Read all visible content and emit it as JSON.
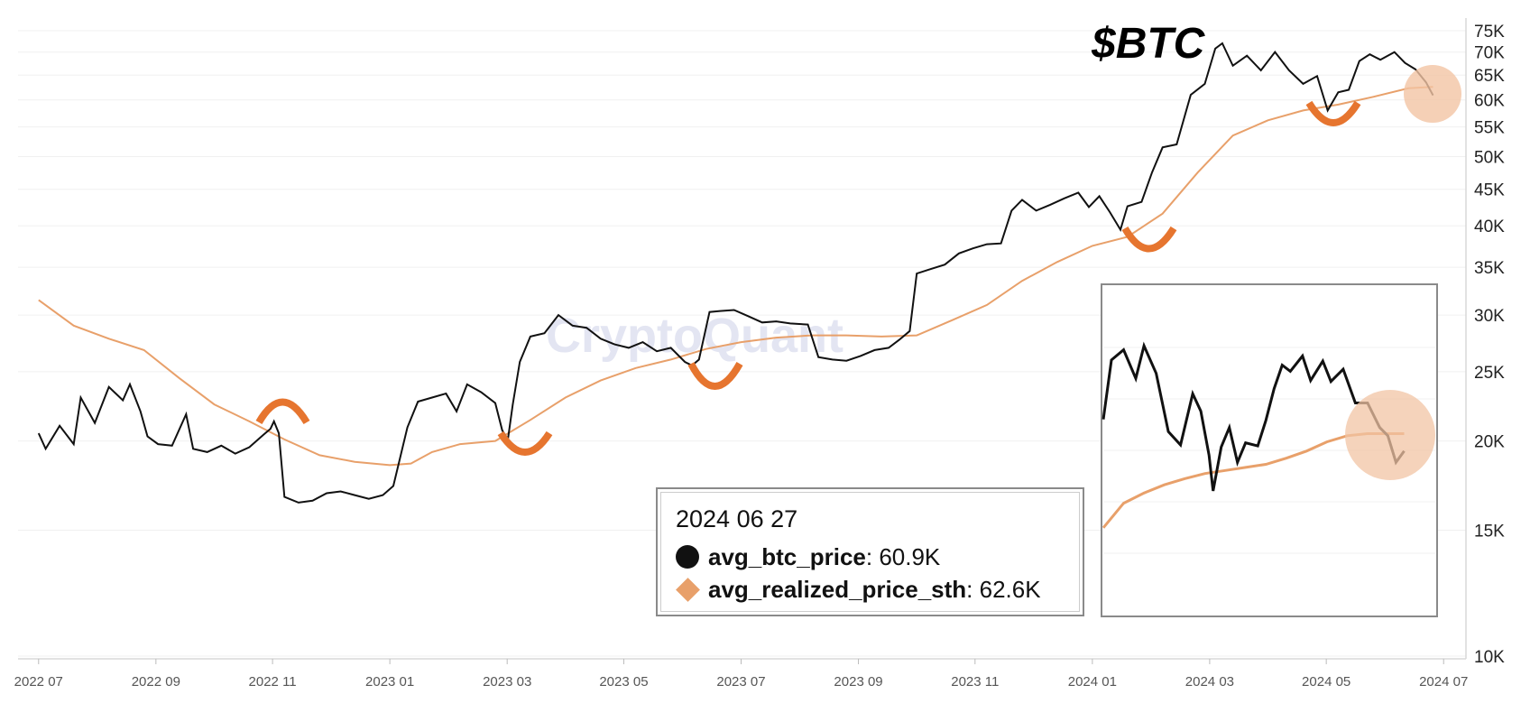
{
  "chart_data": {
    "type": "line",
    "title": "$BTC",
    "watermark": "CryptoQuant",
    "y_scale": "log",
    "ylim": [
      10000,
      75000
    ],
    "y_ticks": [
      {
        "value": 75000,
        "label": "75K"
      },
      {
        "value": 70000,
        "label": "70K"
      },
      {
        "value": 65000,
        "label": "65K"
      },
      {
        "value": 60000,
        "label": "60K"
      },
      {
        "value": 55000,
        "label": "55K"
      },
      {
        "value": 50000,
        "label": "50K"
      },
      {
        "value": 45000,
        "label": "45K"
      },
      {
        "value": 40000,
        "label": "40K"
      },
      {
        "value": 35000,
        "label": "35K"
      },
      {
        "value": 30000,
        "label": "30K"
      },
      {
        "value": 25000,
        "label": "25K"
      },
      {
        "value": 20000,
        "label": "20K"
      },
      {
        "value": 15000,
        "label": "15K"
      },
      {
        "value": 10000,
        "label": "10K"
      }
    ],
    "x_ticks": [
      {
        "value": 2022.5,
        "label": "2022 07"
      },
      {
        "value": 2022.667,
        "label": "2022 09"
      },
      {
        "value": 2022.833,
        "label": "2022 11"
      },
      {
        "value": 2023.0,
        "label": "2023 01"
      },
      {
        "value": 2023.167,
        "label": "2023 03"
      },
      {
        "value": 2023.333,
        "label": "2023 05"
      },
      {
        "value": 2023.5,
        "label": "2023 07"
      },
      {
        "value": 2023.667,
        "label": "2023 09"
      },
      {
        "value": 2023.833,
        "label": "2023 11"
      },
      {
        "value": 2024.0,
        "label": "2024 01"
      },
      {
        "value": 2024.167,
        "label": "2024 03"
      },
      {
        "value": 2024.333,
        "label": "2024 05"
      },
      {
        "value": 2024.5,
        "label": "2024 07"
      }
    ],
    "xlim": [
      2022.49,
      2024.51
    ],
    "series": [
      {
        "name": "avg_btc_price",
        "color": "#111111",
        "points": [
          [
            2022.5,
            20500
          ],
          [
            2022.51,
            19500
          ],
          [
            2022.53,
            21000
          ],
          [
            2022.55,
            19800
          ],
          [
            2022.56,
            23000
          ],
          [
            2022.58,
            21200
          ],
          [
            2022.6,
            23800
          ],
          [
            2022.62,
            22800
          ],
          [
            2022.63,
            24000
          ],
          [
            2022.645,
            22000
          ],
          [
            2022.655,
            20300
          ],
          [
            2022.67,
            19800
          ],
          [
            2022.69,
            19700
          ],
          [
            2022.71,
            21800
          ],
          [
            2022.72,
            19500
          ],
          [
            2022.74,
            19300
          ],
          [
            2022.76,
            19700
          ],
          [
            2022.78,
            19200
          ],
          [
            2022.8,
            19600
          ],
          [
            2022.82,
            20400
          ],
          [
            2022.83,
            20800
          ],
          [
            2022.835,
            21300
          ],
          [
            2022.842,
            20500
          ],
          [
            2022.85,
            16700
          ],
          [
            2022.87,
            16400
          ],
          [
            2022.89,
            16500
          ],
          [
            2022.91,
            16900
          ],
          [
            2022.93,
            17000
          ],
          [
            2022.95,
            16800
          ],
          [
            2022.97,
            16600
          ],
          [
            2022.99,
            16800
          ],
          [
            2023.005,
            17300
          ],
          [
            2023.025,
            20900
          ],
          [
            2023.04,
            22700
          ],
          [
            2023.06,
            23000
          ],
          [
            2023.08,
            23300
          ],
          [
            2023.095,
            22000
          ],
          [
            2023.11,
            24000
          ],
          [
            2023.13,
            23400
          ],
          [
            2023.15,
            22600
          ],
          [
            2023.16,
            20700
          ],
          [
            2023.168,
            20100
          ],
          [
            2023.175,
            22500
          ],
          [
            2023.185,
            25800
          ],
          [
            2023.2,
            28000
          ],
          [
            2023.22,
            28300
          ],
          [
            2023.24,
            30000
          ],
          [
            2023.26,
            29000
          ],
          [
            2023.28,
            28800
          ],
          [
            2023.3,
            27800
          ],
          [
            2023.32,
            27300
          ],
          [
            2023.34,
            27000
          ],
          [
            2023.36,
            27500
          ],
          [
            2023.38,
            26700
          ],
          [
            2023.4,
            27000
          ],
          [
            2023.42,
            25800
          ],
          [
            2023.43,
            25500
          ],
          [
            2023.44,
            26000
          ],
          [
            2023.455,
            30300
          ],
          [
            2023.47,
            30400
          ],
          [
            2023.49,
            30500
          ],
          [
            2023.51,
            29900
          ],
          [
            2023.53,
            29300
          ],
          [
            2023.55,
            29400
          ],
          [
            2023.57,
            29200
          ],
          [
            2023.595,
            29100
          ],
          [
            2023.61,
            26200
          ],
          [
            2023.63,
            26000
          ],
          [
            2023.65,
            25900
          ],
          [
            2023.67,
            26300
          ],
          [
            2023.69,
            26800
          ],
          [
            2023.71,
            27000
          ],
          [
            2023.725,
            27700
          ],
          [
            2023.74,
            28500
          ],
          [
            2023.75,
            34300
          ],
          [
            2023.77,
            34800
          ],
          [
            2023.79,
            35300
          ],
          [
            2023.81,
            36600
          ],
          [
            2023.83,
            37200
          ],
          [
            2023.85,
            37700
          ],
          [
            2023.87,
            37800
          ],
          [
            2023.885,
            42000
          ],
          [
            2023.9,
            43500
          ],
          [
            2023.92,
            42000
          ],
          [
            2023.94,
            42800
          ],
          [
            2023.96,
            43700
          ],
          [
            2023.98,
            44500
          ],
          [
            2023.995,
            42500
          ],
          [
            2024.01,
            44000
          ],
          [
            2024.025,
            41800
          ],
          [
            2024.04,
            39500
          ],
          [
            2024.05,
            42600
          ],
          [
            2024.07,
            43200
          ],
          [
            2024.085,
            47500
          ],
          [
            2024.1,
            51500
          ],
          [
            2024.12,
            52000
          ],
          [
            2024.14,
            61000
          ],
          [
            2024.16,
            63200
          ],
          [
            2024.175,
            70800
          ],
          [
            2024.185,
            72000
          ],
          [
            2024.2,
            67000
          ],
          [
            2024.22,
            69200
          ],
          [
            2024.24,
            66000
          ],
          [
            2024.26,
            70000
          ],
          [
            2024.28,
            66000
          ],
          [
            2024.3,
            63200
          ],
          [
            2024.32,
            64800
          ],
          [
            2024.335,
            58000
          ],
          [
            2024.35,
            61500
          ],
          [
            2024.365,
            62000
          ],
          [
            2024.38,
            68000
          ],
          [
            2024.395,
            69500
          ],
          [
            2024.41,
            68300
          ],
          [
            2024.43,
            70000
          ],
          [
            2024.445,
            67600
          ],
          [
            2024.46,
            66200
          ],
          [
            2024.475,
            63500
          ],
          [
            2024.485,
            60900
          ]
        ]
      },
      {
        "name": "avg_realized_price_sth",
        "color": "#e8a06a",
        "points": [
          [
            2022.5,
            31500
          ],
          [
            2022.55,
            29000
          ],
          [
            2022.6,
            27800
          ],
          [
            2022.65,
            26800
          ],
          [
            2022.7,
            24500
          ],
          [
            2022.75,
            22500
          ],
          [
            2022.8,
            21300
          ],
          [
            2022.85,
            20100
          ],
          [
            2022.9,
            19100
          ],
          [
            2022.95,
            18700
          ],
          [
            2023.0,
            18500
          ],
          [
            2023.03,
            18600
          ],
          [
            2023.06,
            19300
          ],
          [
            2023.1,
            19800
          ],
          [
            2023.15,
            20000
          ],
          [
            2023.2,
            21400
          ],
          [
            2023.25,
            23000
          ],
          [
            2023.3,
            24300
          ],
          [
            2023.35,
            25300
          ],
          [
            2023.4,
            26000
          ],
          [
            2023.45,
            26900
          ],
          [
            2023.5,
            27500
          ],
          [
            2023.55,
            27900
          ],
          [
            2023.6,
            28100
          ],
          [
            2023.65,
            28100
          ],
          [
            2023.7,
            28000
          ],
          [
            2023.75,
            28100
          ],
          [
            2023.8,
            29500
          ],
          [
            2023.85,
            31000
          ],
          [
            2023.9,
            33500
          ],
          [
            2023.95,
            35600
          ],
          [
            2024.0,
            37500
          ],
          [
            2024.05,
            38600
          ],
          [
            2024.1,
            41600
          ],
          [
            2024.15,
            47500
          ],
          [
            2024.2,
            53500
          ],
          [
            2024.25,
            56200
          ],
          [
            2024.3,
            58000
          ],
          [
            2024.35,
            59100
          ],
          [
            2024.4,
            60600
          ],
          [
            2024.45,
            62300
          ],
          [
            2024.485,
            62600
          ]
        ]
      }
    ],
    "inset_series": [
      {
        "name": "avg_btc_price",
        "color": "#111111",
        "points": [
          [
            0.0,
            64000
          ],
          [
            0.02,
            69800
          ],
          [
            0.05,
            70800
          ],
          [
            0.08,
            68000
          ],
          [
            0.1,
            71200
          ],
          [
            0.13,
            68500
          ],
          [
            0.16,
            62800
          ],
          [
            0.19,
            61500
          ],
          [
            0.22,
            66500
          ],
          [
            0.24,
            64800
          ],
          [
            0.26,
            60500
          ],
          [
            0.27,
            57000
          ],
          [
            0.29,
            61300
          ],
          [
            0.31,
            63200
          ],
          [
            0.33,
            59800
          ],
          [
            0.35,
            61700
          ],
          [
            0.38,
            61400
          ],
          [
            0.4,
            63900
          ],
          [
            0.42,
            67000
          ],
          [
            0.44,
            69300
          ],
          [
            0.46,
            68700
          ],
          [
            0.49,
            70200
          ],
          [
            0.51,
            67800
          ],
          [
            0.54,
            69700
          ],
          [
            0.56,
            67700
          ],
          [
            0.59,
            68900
          ],
          [
            0.62,
            65600
          ],
          [
            0.65,
            65600
          ],
          [
            0.68,
            63200
          ],
          [
            0.7,
            62400
          ],
          [
            0.72,
            59800
          ],
          [
            0.74,
            60900
          ]
        ]
      },
      {
        "name": "avg_realized_price_sth",
        "color": "#e8a06a",
        "points": [
          [
            0.0,
            53400
          ],
          [
            0.05,
            55800
          ],
          [
            0.1,
            56800
          ],
          [
            0.15,
            57600
          ],
          [
            0.2,
            58200
          ],
          [
            0.25,
            58700
          ],
          [
            0.3,
            59000
          ],
          [
            0.35,
            59300
          ],
          [
            0.4,
            59600
          ],
          [
            0.45,
            60200
          ],
          [
            0.5,
            60900
          ],
          [
            0.55,
            61800
          ],
          [
            0.6,
            62400
          ],
          [
            0.65,
            62600
          ],
          [
            0.7,
            62600
          ],
          [
            0.74,
            62600
          ]
        ]
      }
    ],
    "annotations": [
      "support-arc",
      "resistance-arc",
      "support-arc",
      "support-arc",
      "support-arc",
      "support-arc",
      "highlight-circle"
    ]
  },
  "legend": {
    "date": "2024 06 27",
    "items": [
      {
        "name": "avg_btc_price",
        "value": ": 60.9K"
      },
      {
        "name": "avg_realized_price_sth",
        "value": ": 62.6K"
      }
    ]
  }
}
